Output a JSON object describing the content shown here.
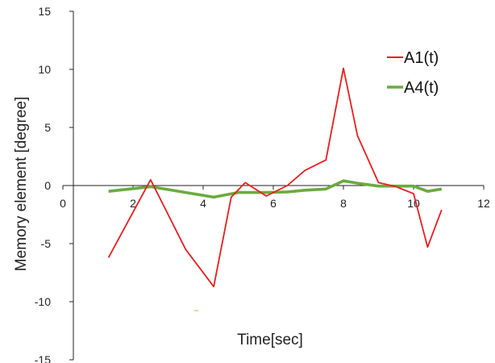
{
  "chart_data": {
    "type": "line",
    "xlabel": "Time[sec]",
    "ylabel": "Memory element [degree]",
    "xlim": [
      0,
      12
    ],
    "ylim": [
      -15,
      15
    ],
    "x_ticks": [
      0,
      2,
      4,
      6,
      8,
      10,
      12
    ],
    "y_ticks": [
      15,
      10,
      5,
      0,
      -5,
      -10,
      -15
    ],
    "grid": false,
    "legend": "right",
    "series": [
      {
        "name": "A1(t)",
        "color": "#ee1c1c",
        "points": [
          [
            1.3,
            -6.2
          ],
          [
            2.5,
            0.5
          ],
          [
            3.5,
            -5.5
          ],
          [
            4.3,
            -8.7
          ],
          [
            4.8,
            -1.0
          ],
          [
            5.2,
            0.25
          ],
          [
            5.8,
            -0.9
          ],
          [
            6.4,
            0.0
          ],
          [
            6.9,
            1.3
          ],
          [
            7.5,
            2.2
          ],
          [
            8.0,
            10.1
          ],
          [
            8.4,
            4.3
          ],
          [
            9.0,
            0.25
          ],
          [
            9.5,
            -0.1
          ],
          [
            10.0,
            -0.7
          ],
          [
            10.4,
            -5.3
          ],
          [
            10.8,
            -2.1
          ]
        ]
      },
      {
        "name": "A4(t)",
        "color": "#6aab3e",
        "points": [
          [
            1.3,
            -0.5
          ],
          [
            2.5,
            -0.1
          ],
          [
            3.5,
            -0.6
          ],
          [
            4.3,
            -1.0
          ],
          [
            5.0,
            -0.6
          ],
          [
            5.8,
            -0.6
          ],
          [
            6.4,
            -0.55
          ],
          [
            6.9,
            -0.4
          ],
          [
            7.5,
            -0.3
          ],
          [
            8.0,
            0.4
          ],
          [
            8.4,
            0.2
          ],
          [
            9.0,
            -0.05
          ],
          [
            10.0,
            -0.05
          ],
          [
            10.4,
            -0.5
          ],
          [
            10.8,
            -0.3
          ]
        ]
      }
    ]
  }
}
